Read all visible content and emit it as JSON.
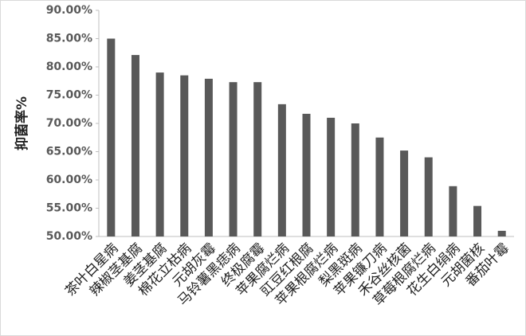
{
  "chart_data": {
    "type": "bar",
    "y_label": "抑菌率%",
    "categories": [
      "茶叶白星病",
      "辣椒茎基腐",
      "姜茎基腐",
      "棉花立枯病",
      "元胡灰霉",
      "马铃薯黑痣病",
      "终极腐霉",
      "苹果腐烂病",
      "豇豆红根腐",
      "苹果根腐烂病",
      "梨黑斑病",
      "苹果镰刀病",
      "禾谷丝核菌",
      "草莓根腐烂病",
      "花生白绢病",
      "元胡菌核",
      "番茄叶霉"
    ],
    "values": [
      85.0,
      82.1,
      79.0,
      78.5,
      77.9,
      77.3,
      77.3,
      73.4,
      71.7,
      71.0,
      70.0,
      67.5,
      65.2,
      64.0,
      58.9,
      55.4,
      51.0
    ],
    "color": "#595959",
    "ylim": [
      50,
      90
    ],
    "yticks": [
      {
        "value": 50,
        "label": "50.00%"
      },
      {
        "value": 55,
        "label": "55.00%"
      },
      {
        "value": 60,
        "label": "60.00%"
      },
      {
        "value": 65,
        "label": "65.00%"
      },
      {
        "value": 70,
        "label": "70.00%"
      },
      {
        "value": 75,
        "label": "75.00%"
      },
      {
        "value": 80,
        "label": "80.00%"
      },
      {
        "value": 85,
        "label": "85.00%"
      },
      {
        "value": 90,
        "label": "90.00%"
      }
    ],
    "grid": false
  }
}
